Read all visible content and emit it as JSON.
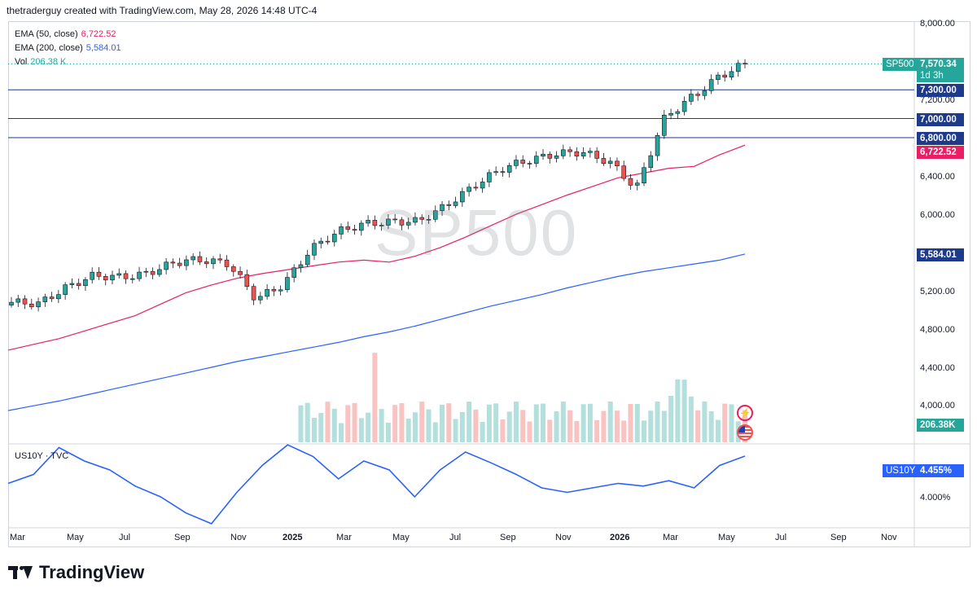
{
  "header": {
    "credit": "thetraderguy created with TradingView.com, May 28, 2026 14:48 UTC-4"
  },
  "legend": {
    "ema50": {
      "label": "EMA (50, close)",
      "value": "6,722.52",
      "color": "#e91e63"
    },
    "ema200": {
      "label": "EMA (200, close)",
      "value": "5,584.01",
      "color": "#2962ff"
    },
    "vol": {
      "label": "Vol",
      "value": "206.38 K",
      "color": "#26a69a"
    }
  },
  "watermark": "SP500",
  "price_axis": {
    "ticks": [
      "8,000.00",
      "7,200.00",
      "6,400.00",
      "6,000.00",
      "5,200.00",
      "4,800.00",
      "4,400.00",
      "4,000.00"
    ],
    "tick_values": [
      8000,
      7200,
      6400,
      6000,
      5200,
      4800,
      4400,
      4000
    ]
  },
  "tags": {
    "symbol": "SP500",
    "last_price": "7,570.34",
    "countdown": "1d 3h",
    "level1": "7,300.00",
    "level2": "7,000.00",
    "level3": "6,800.00",
    "ema50": "6,722.52",
    "ema200": "5,584.01",
    "volume": "206.38K",
    "us10y_symbol": "US10Y",
    "us10y_value": "4.455%"
  },
  "lower_pane": {
    "title": "US10Y · TVC",
    "tick": "4.000%"
  },
  "time_axis": [
    "Mar",
    "May",
    "Jul",
    "Sep",
    "Nov",
    "2025",
    "Mar",
    "May",
    "Jul",
    "Sep",
    "Nov",
    "2026",
    "Mar",
    "May",
    "Jul",
    "Sep",
    "Nov"
  ],
  "brand": "TradingView",
  "colors": {
    "up": "#26a69a",
    "down": "#ef5350",
    "ema50": "#e91e63",
    "ema200": "#2962ff",
    "hline": "#1e3a8a",
    "us10y": "#2962ff"
  },
  "chart_data": {
    "type": "line",
    "title": "",
    "xlabel": "",
    "ylabel": "",
    "ylim": [
      3800,
      8200
    ],
    "levels": [
      7300,
      7000,
      6800
    ],
    "series": [
      {
        "name": "EMA (50, close)",
        "values": [
          4580,
          4640,
          4700,
          4780,
          4860,
          4940,
          5060,
          5180,
          5260,
          5330,
          5380,
          5420,
          5460,
          5500,
          5520,
          5500,
          5560,
          5650,
          5760,
          5880,
          6000,
          6100,
          6200,
          6290,
          6380,
          6430,
          6480,
          6500,
          6620,
          6722
        ]
      },
      {
        "name": "EMA (200, close)",
        "values": [
          3940,
          3990,
          4040,
          4100,
          4160,
          4220,
          4280,
          4340,
          4400,
          4460,
          4510,
          4560,
          4610,
          4660,
          4720,
          4770,
          4830,
          4900,
          4970,
          5040,
          5100,
          5160,
          5230,
          5290,
          5350,
          5400,
          5440,
          5480,
          5520,
          5584
        ]
      }
    ],
    "us10y": [
      4.15,
      4.25,
      4.55,
      4.4,
      4.3,
      4.12,
      4.0,
      3.82,
      3.7,
      4.05,
      4.35,
      4.58,
      4.45,
      4.2,
      4.4,
      4.3,
      4.0,
      4.3,
      4.5,
      4.38,
      4.25,
      4.1,
      4.05,
      4.1,
      4.15,
      4.12,
      4.18,
      4.1,
      4.35,
      4.455
    ]
  }
}
